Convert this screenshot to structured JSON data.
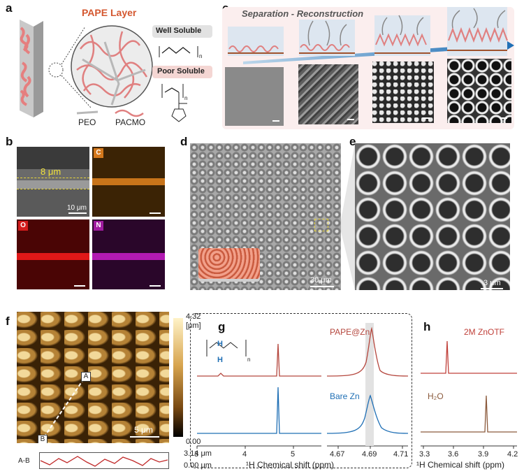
{
  "panels": {
    "a": {
      "label": "a",
      "layer_title": "PAPE Layer",
      "well_soluble": "Well Soluble",
      "poor_soluble": "Poor Soluble",
      "peo": "PEO",
      "pacmo": "PACMO",
      "n_sub": "n",
      "n_sub2": "n"
    },
    "b": {
      "label": "b",
      "thickness": "8 μm",
      "scale": "10 μm",
      "channels": [
        "C",
        "O",
        "N"
      ]
    },
    "c": {
      "label": "c",
      "title": "Separation - Reconstruction"
    },
    "d": {
      "label": "d",
      "scale": "30 μm"
    },
    "e": {
      "label": "e",
      "scale": "3 μm"
    },
    "f": {
      "label": "f",
      "colorbar_max": "4.32",
      "colorbar_unit": "[μm]",
      "colorbar_min": "0.00",
      "scale": "5 μm",
      "point_a": "A",
      "point_b": "B",
      "profile_label": "A-B",
      "profile_max": "3.14 μm",
      "profile_min": "0.00 μm"
    },
    "g": {
      "label": "g",
      "series": [
        "PAPE@Zn",
        "Bare Zn"
      ],
      "h_label": "H",
      "n_sub": "n",
      "x_ticks_left": [
        "3",
        "4",
        "5"
      ],
      "x_ticks_right": [
        "4.67",
        "4.69",
        "4.71"
      ],
      "xlabel": "¹H Chemical shift (ppm)"
    },
    "h": {
      "label": "h",
      "series": [
        "2M ZnOTF",
        "H₂O"
      ],
      "x_ticks": [
        "3.3",
        "3.6",
        "3.9",
        "4.2"
      ],
      "xlabel": "¹H Chemical shift (ppm)"
    }
  },
  "colors": {
    "pape": "#b5473e",
    "bare": "#1f6fb5",
    "zn_otf": "#c0403a",
    "water": "#8b5a3c",
    "accent": "#d4572f"
  }
}
